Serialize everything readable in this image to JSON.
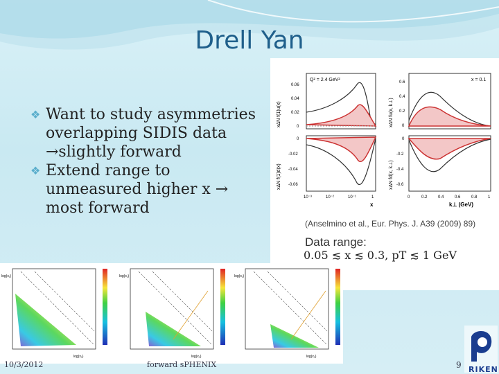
{
  "slide": {
    "title": "Drell Yan",
    "bullets": [
      {
        "text": "Want to study asymmetries overlapping SIDIS data →slightly forward"
      },
      {
        "text": "Extend range to unmeasured higher x → most forward"
      }
    ],
    "citation": "(Anselmino et al., Eur. Phys. J. A39 (2009) 89)",
    "data_range_label": "Data range:",
    "data_range_formula": "0.05 ≲ x ≲ 0.3, pT ≲ 1 GeV",
    "footer": {
      "date": "10/3/2012",
      "center": "forward sPHENIX",
      "page": "9"
    },
    "logo_text": "RIKEN"
  },
  "plots": {
    "top_left": {
      "annotation": "Q² = 2.4 GeV²",
      "y_ticks": [
        "0.06",
        "0.04",
        "0.02",
        "0"
      ],
      "ylabel": "xΔN f(1)u(x)"
    },
    "bottom_left": {
      "y_ticks": [
        "0",
        "-0.02",
        "-0.04",
        "-0.06"
      ],
      "x_ticks": [
        "10⁻³",
        "10⁻²",
        "10⁻¹",
        "1"
      ],
      "ylabel": "xΔN f(1)d(x)",
      "xlabel": "x"
    },
    "top_right": {
      "annotation": "x = 0.1",
      "y_ticks": [
        "0.6",
        "0.4",
        "0.2",
        "0"
      ],
      "ylabel": "xΔN fu(x, k⊥)"
    },
    "bottom_right": {
      "y_ticks": [
        "0",
        "-0.2",
        "-0.4",
        "-0.6"
      ],
      "x_ticks": [
        "0",
        "0.2",
        "0.4",
        "0.6",
        "0.8",
        "1"
      ],
      "ylabel": "xΔN fd(x, k⊥)",
      "xlabel": "k⊥ (GeV)"
    }
  },
  "heatmaps": [
    {
      "label": "log(x₁)",
      "xlabel": "log(x₂)"
    },
    {
      "label": "log(x₁)",
      "xlabel": "log(x₂)"
    },
    {
      "label": "log(x₁)",
      "xlabel": "log(x₂)"
    }
  ]
}
